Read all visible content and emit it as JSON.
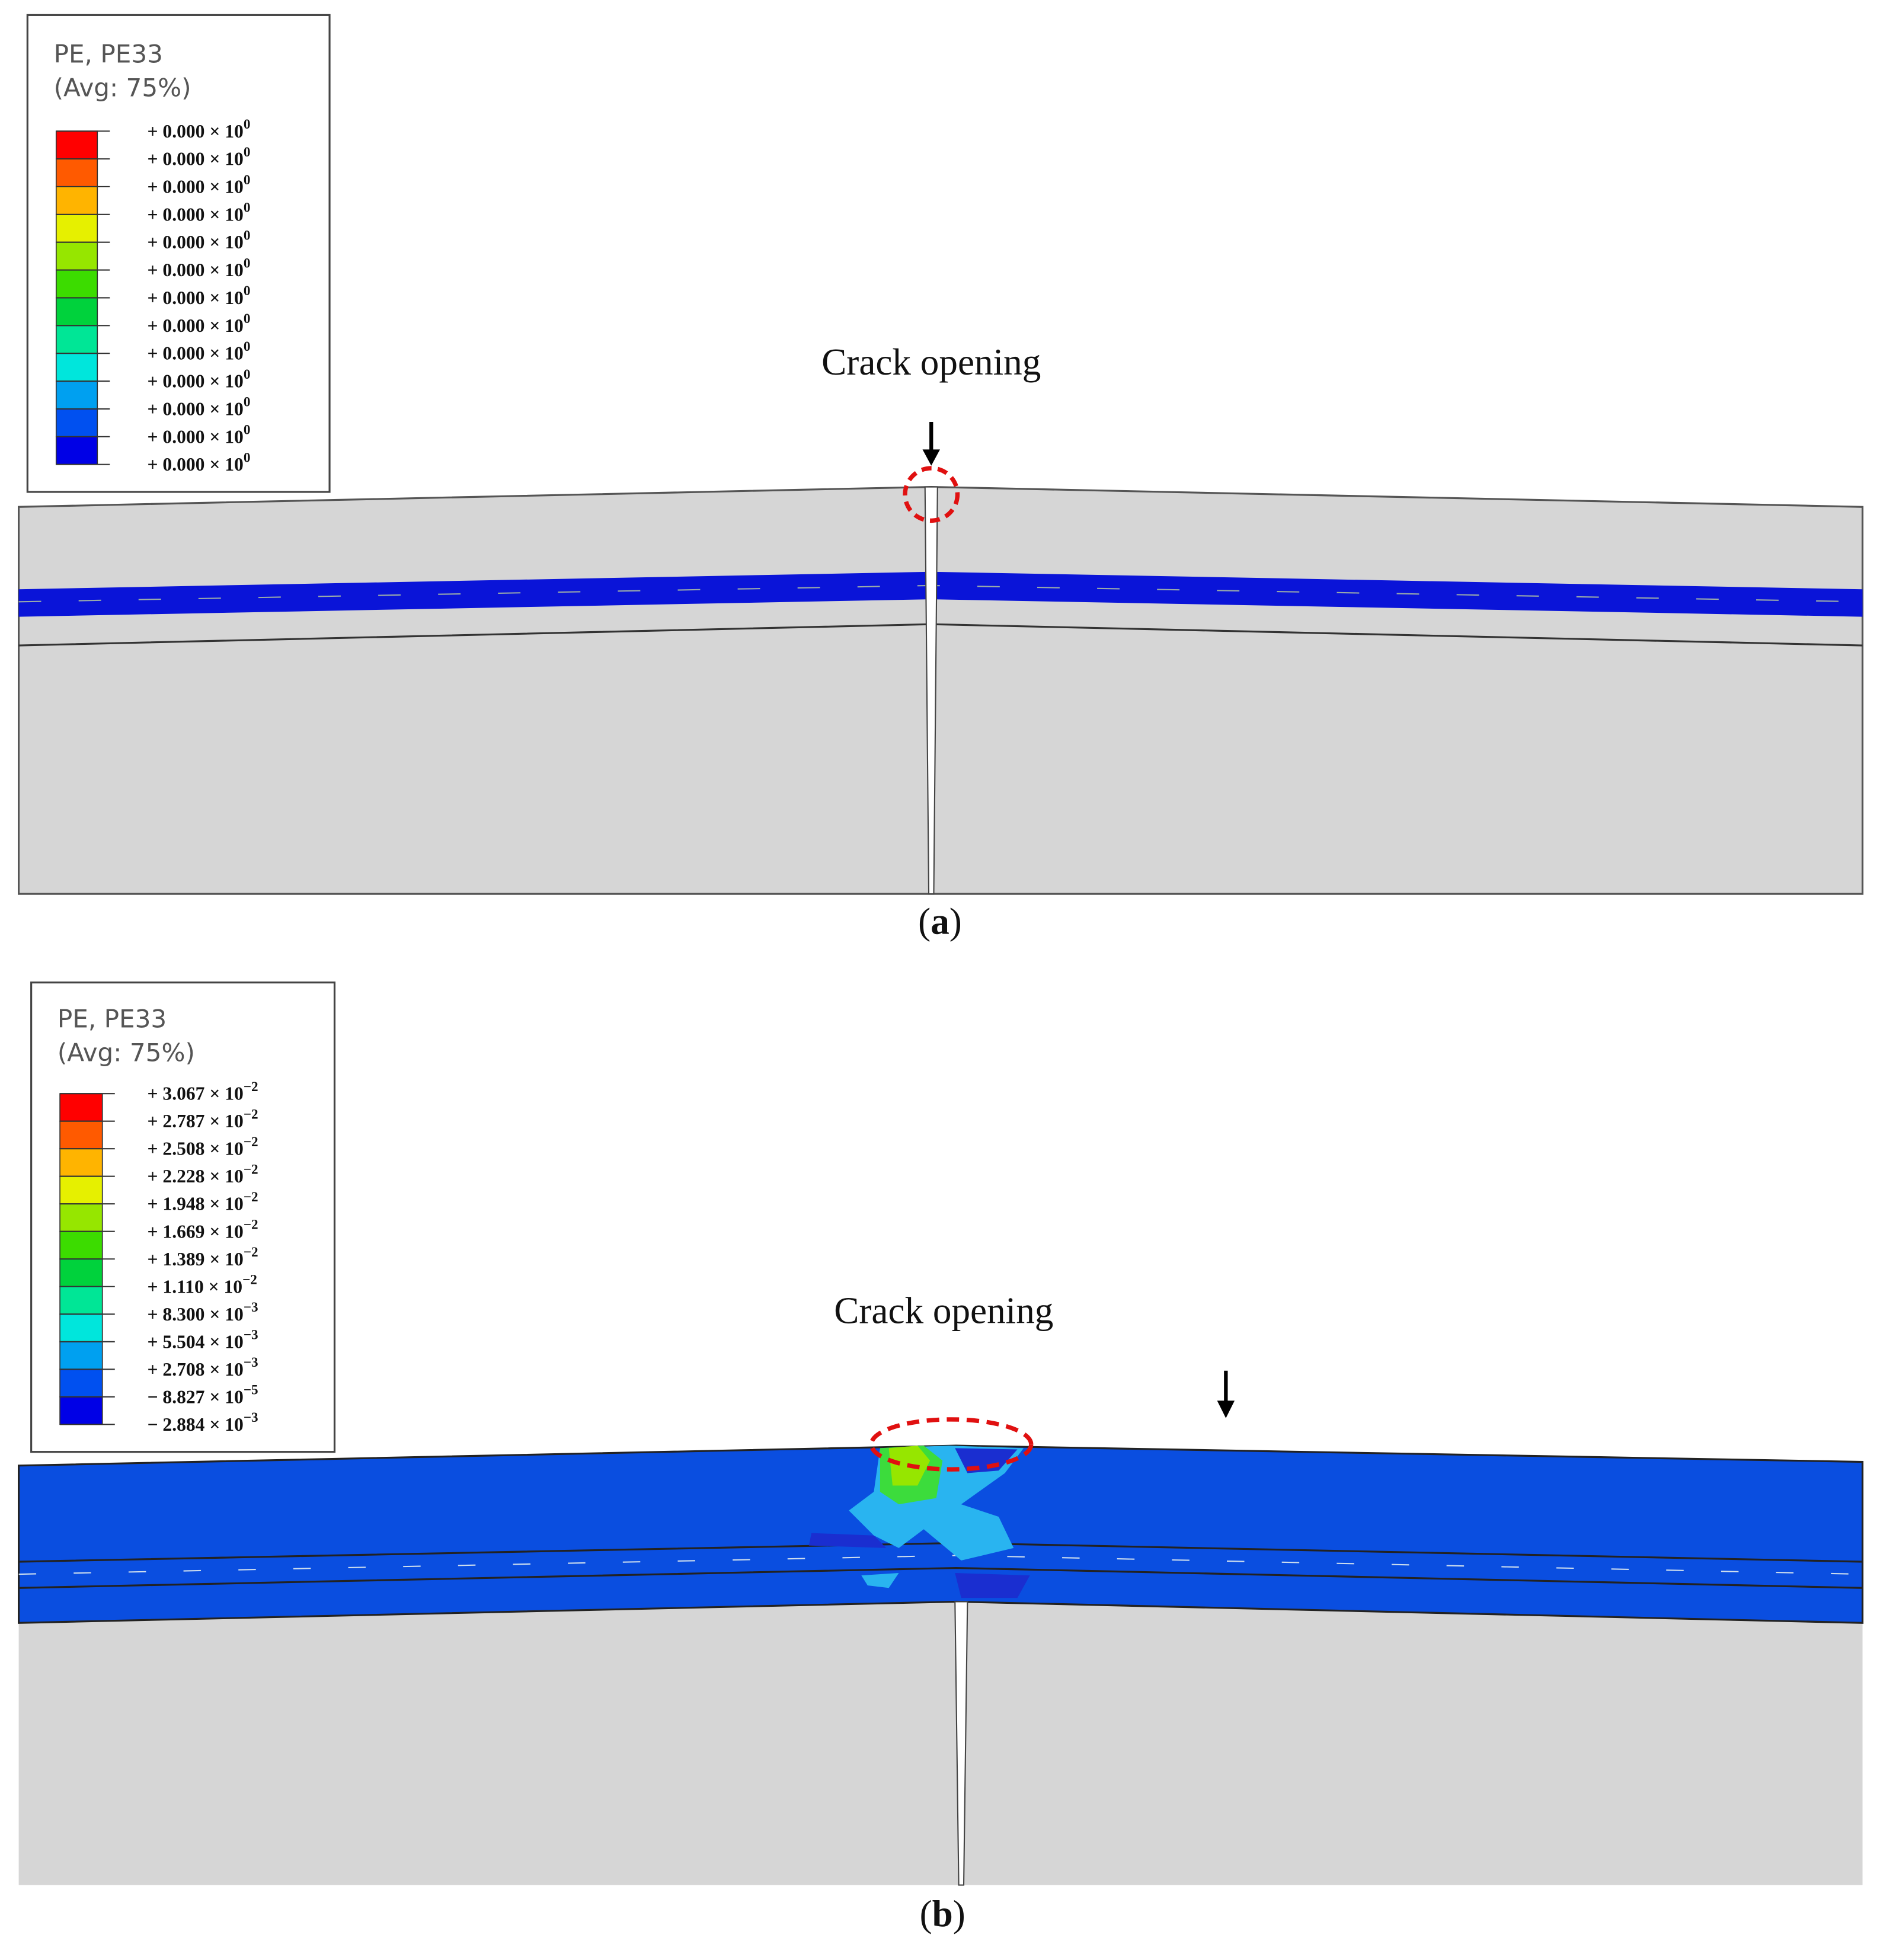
{
  "panels": [
    {
      "legend": {
        "title": [
          "PE, PE33",
          "(Avg: 75%)"
        ],
        "colors": [
          "#ff0000",
          "#ff5a00",
          "#ffb400",
          "#e6f000",
          "#96e600",
          "#3cdc00",
          "#00d23c",
          "#00e696",
          "#00e6dc",
          "#00a0f0",
          "#0050f0",
          "#0000e6"
        ],
        "labels": [
          [
            "+ 0.000 × 10",
            "0"
          ],
          [
            "+ 0.000 × 10",
            "0"
          ],
          [
            "+ 0.000 × 10",
            "0"
          ],
          [
            "+ 0.000 × 10",
            "0"
          ],
          [
            "+ 0.000 × 10",
            "0"
          ],
          [
            "+ 0.000 × 10",
            "0"
          ],
          [
            "+ 0.000 × 10",
            "0"
          ],
          [
            "+ 0.000 × 10",
            "0"
          ],
          [
            "+ 0.000 × 10",
            "0"
          ],
          [
            "+ 0.000 × 10",
            "0"
          ],
          [
            "+ 0.000 × 10",
            "0"
          ],
          [
            "+ 0.000 × 10",
            "0"
          ],
          [
            "+ 0.000 × 10",
            "0"
          ]
        ]
      },
      "annotation": "Crack opening",
      "caption": [
        "(",
        "a",
        ")"
      ]
    },
    {
      "legend": {
        "title": [
          "PE, PE33",
          "(Avg: 75%)"
        ],
        "colors": [
          "#ff0000",
          "#ff5a00",
          "#ffb400",
          "#e6f000",
          "#96e600",
          "#3cdc00",
          "#00d23c",
          "#00e696",
          "#00e6dc",
          "#00a0f0",
          "#0050f0",
          "#0000e6"
        ],
        "labels": [
          [
            "+ 3.067 × 10",
            "−2"
          ],
          [
            "+ 2.787 × 10",
            "−2"
          ],
          [
            "+ 2.508 × 10",
            "−2"
          ],
          [
            "+ 2.228 × 10",
            "−2"
          ],
          [
            "+ 1.948 × 10",
            "−2"
          ],
          [
            "+ 1.669 × 10",
            "−2"
          ],
          [
            "+ 1.389 × 10",
            "−2"
          ],
          [
            "+ 1.110 × 10",
            "−2"
          ],
          [
            "+ 8.300 × 10",
            "−3"
          ],
          [
            "+ 5.504 × 10",
            "−3"
          ],
          [
            "+ 2.708 × 10",
            "−3"
          ],
          [
            "− 8.827 × 10",
            "−5"
          ],
          [
            "− 2.884 × 10",
            "−3"
          ]
        ]
      },
      "annotation": "Crack opening",
      "caption": [
        "(",
        "b",
        ")"
      ]
    }
  ]
}
